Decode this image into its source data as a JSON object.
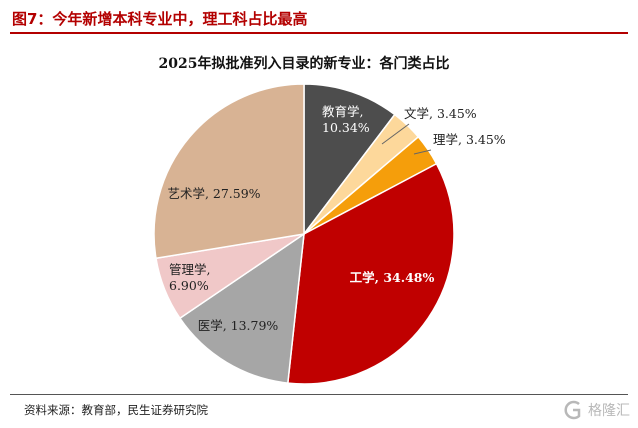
{
  "figure": {
    "header": "图7：今年新增本科专业中，理工科占比最高",
    "source": "资料来源：教育部，民生证券研究院",
    "watermark": "格隆汇"
  },
  "colors": {
    "header_red": "#b30000",
    "slices": [
      "#4d4d4d",
      "#fdd89b",
      "#f59e0b",
      "#c00000",
      "#a6a6a6",
      "#f0c8c8",
      "#d8b394"
    ]
  },
  "chart_data": {
    "type": "pie",
    "title": "2025年拟批准列入目录的新专业：各门类占比",
    "start_angle_deg": 0,
    "direction": "clockwise",
    "slices": [
      {
        "name": "教育学",
        "value": 10.34,
        "label_line1": "教育学,",
        "label_line2": "10.34%"
      },
      {
        "name": "文学",
        "value": 3.45,
        "label_line1": "文学, 3.45%"
      },
      {
        "name": "理学",
        "value": 3.45,
        "label_line1": "理学, 3.45%"
      },
      {
        "name": "工学",
        "value": 34.48,
        "label_line1": "工学, 34.48%"
      },
      {
        "name": "医学",
        "value": 13.79,
        "label_line1": "医学, 13.79%"
      },
      {
        "name": "管理学",
        "value": 6.9,
        "label_line1": "管理学,",
        "label_line2": "6.90%"
      },
      {
        "name": "艺术学",
        "value": 27.59,
        "label_line1": "艺术学, 27.59%"
      }
    ]
  }
}
